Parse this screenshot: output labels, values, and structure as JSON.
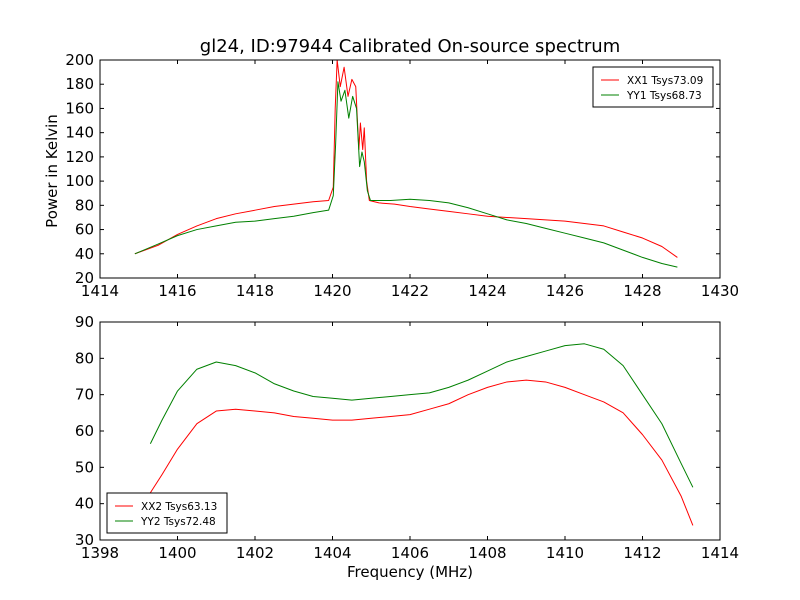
{
  "chart_data": [
    {
      "type": "line",
      "title": "gl24, ID:97944 Calibrated On-source spectrum",
      "xlabel": "",
      "ylabel": "Power in Kelvin",
      "xlim": [
        1414,
        1430
      ],
      "ylim": [
        20,
        200
      ],
      "xticks": [
        1414,
        1416,
        1418,
        1420,
        1422,
        1424,
        1426,
        1428,
        1430
      ],
      "yticks": [
        20,
        40,
        60,
        80,
        100,
        120,
        140,
        160,
        180,
        200
      ],
      "legend_position": "top-right",
      "grid": false,
      "series": [
        {
          "name": "XX1 Tsys73.09",
          "color": "#ff0000",
          "points": [
            [
              1414.9,
              40
            ],
            [
              1415.5,
              47
            ],
            [
              1416,
              56
            ],
            [
              1416.5,
              63
            ],
            [
              1417,
              69
            ],
            [
              1417.5,
              73
            ],
            [
              1418,
              76
            ],
            [
              1418.5,
              79
            ],
            [
              1419,
              81
            ],
            [
              1419.5,
              83
            ],
            [
              1419.9,
              84
            ],
            [
              1420.02,
              95
            ],
            [
              1420.07,
              160
            ],
            [
              1420.12,
              200
            ],
            [
              1420.2,
              178
            ],
            [
              1420.3,
              194
            ],
            [
              1420.4,
              170
            ],
            [
              1420.5,
              184
            ],
            [
              1420.6,
              178
            ],
            [
              1420.68,
              126
            ],
            [
              1420.72,
              148
            ],
            [
              1420.78,
              126
            ],
            [
              1420.82,
              144
            ],
            [
              1420.88,
              100
            ],
            [
              1420.95,
              84
            ],
            [
              1421.2,
              82
            ],
            [
              1421.6,
              81
            ],
            [
              1422,
              79
            ],
            [
              1422.5,
              77
            ],
            [
              1423,
              75
            ],
            [
              1423.5,
              73
            ],
            [
              1424,
              71
            ],
            [
              1424.5,
              70
            ],
            [
              1425,
              69
            ],
            [
              1425.5,
              68
            ],
            [
              1426,
              67
            ],
            [
              1426.5,
              65
            ],
            [
              1427,
              63
            ],
            [
              1427.5,
              58
            ],
            [
              1428,
              53
            ],
            [
              1428.5,
              46
            ],
            [
              1428.9,
              37
            ]
          ]
        },
        {
          "name": "YY1 Tsys68.73",
          "color": "#008000",
          "points": [
            [
              1414.9,
              40
            ],
            [
              1415.5,
              48
            ],
            [
              1416,
              55
            ],
            [
              1416.5,
              60
            ],
            [
              1417,
              63
            ],
            [
              1417.5,
              66
            ],
            [
              1418,
              67
            ],
            [
              1418.5,
              69
            ],
            [
              1419,
              71
            ],
            [
              1419.5,
              74
            ],
            [
              1419.9,
              76
            ],
            [
              1420.02,
              88
            ],
            [
              1420.08,
              130
            ],
            [
              1420.14,
              182
            ],
            [
              1420.22,
              166
            ],
            [
              1420.32,
              175
            ],
            [
              1420.42,
              152
            ],
            [
              1420.52,
              170
            ],
            [
              1420.62,
              160
            ],
            [
              1420.7,
              112
            ],
            [
              1420.76,
              124
            ],
            [
              1420.82,
              116
            ],
            [
              1420.9,
              92
            ],
            [
              1420.98,
              84
            ],
            [
              1421.5,
              84
            ],
            [
              1422,
              85
            ],
            [
              1422.5,
              84
            ],
            [
              1423,
              82
            ],
            [
              1423.5,
              78
            ],
            [
              1424,
              73
            ],
            [
              1424.5,
              68
            ],
            [
              1425,
              65
            ],
            [
              1425.5,
              61
            ],
            [
              1426,
              57
            ],
            [
              1426.5,
              53
            ],
            [
              1427,
              49
            ],
            [
              1427.5,
              43
            ],
            [
              1428,
              37
            ],
            [
              1428.5,
              32
            ],
            [
              1428.9,
              29
            ]
          ]
        }
      ]
    },
    {
      "type": "line",
      "title": "",
      "xlabel": "Frequency (MHz)",
      "ylabel": "",
      "xlim": [
        1398,
        1414
      ],
      "ylim": [
        30,
        90
      ],
      "xticks": [
        1398,
        1400,
        1402,
        1404,
        1406,
        1408,
        1410,
        1412,
        1414
      ],
      "yticks": [
        30,
        40,
        50,
        60,
        70,
        80,
        90
      ],
      "legend_position": "bottom-left",
      "grid": false,
      "series": [
        {
          "name": "XX2 Tsys63.13",
          "color": "#ff0000",
          "points": [
            [
              1399.3,
              43
            ],
            [
              1399.6,
              48
            ],
            [
              1400,
              55
            ],
            [
              1400.5,
              62
            ],
            [
              1401,
              65.5
            ],
            [
              1401.5,
              66
            ],
            [
              1402,
              65.5
            ],
            [
              1402.5,
              65
            ],
            [
              1403,
              64
            ],
            [
              1403.5,
              63.5
            ],
            [
              1404,
              63
            ],
            [
              1404.5,
              63
            ],
            [
              1405,
              63.5
            ],
            [
              1405.5,
              64
            ],
            [
              1406,
              64.5
            ],
            [
              1406.5,
              66
            ],
            [
              1407,
              67.5
            ],
            [
              1407.5,
              70
            ],
            [
              1408,
              72
            ],
            [
              1408.5,
              73.5
            ],
            [
              1409,
              74
            ],
            [
              1409.5,
              73.5
            ],
            [
              1410,
              72
            ],
            [
              1410.5,
              70
            ],
            [
              1411,
              68
            ],
            [
              1411.5,
              65
            ],
            [
              1412,
              59
            ],
            [
              1412.5,
              52
            ],
            [
              1413,
              42
            ],
            [
              1413.3,
              34
            ]
          ]
        },
        {
          "name": "YY2 Tsys72.48",
          "color": "#008000",
          "points": [
            [
              1399.3,
              56.5
            ],
            [
              1399.6,
              63
            ],
            [
              1400,
              71
            ],
            [
              1400.5,
              77
            ],
            [
              1401,
              79
            ],
            [
              1401.5,
              78
            ],
            [
              1402,
              76
            ],
            [
              1402.5,
              73
            ],
            [
              1403,
              71
            ],
            [
              1403.5,
              69.5
            ],
            [
              1404,
              69
            ],
            [
              1404.5,
              68.5
            ],
            [
              1405,
              69
            ],
            [
              1405.5,
              69.5
            ],
            [
              1406,
              70
            ],
            [
              1406.5,
              70.5
            ],
            [
              1407,
              72
            ],
            [
              1407.5,
              74
            ],
            [
              1408,
              76.5
            ],
            [
              1408.5,
              79
            ],
            [
              1409,
              80.5
            ],
            [
              1409.5,
              82
            ],
            [
              1410,
              83.5
            ],
            [
              1410.5,
              84
            ],
            [
              1411,
              82.5
            ],
            [
              1411.5,
              78
            ],
            [
              1412,
              70
            ],
            [
              1412.5,
              62
            ],
            [
              1413,
              51
            ],
            [
              1413.3,
              44.5
            ]
          ]
        }
      ]
    }
  ]
}
